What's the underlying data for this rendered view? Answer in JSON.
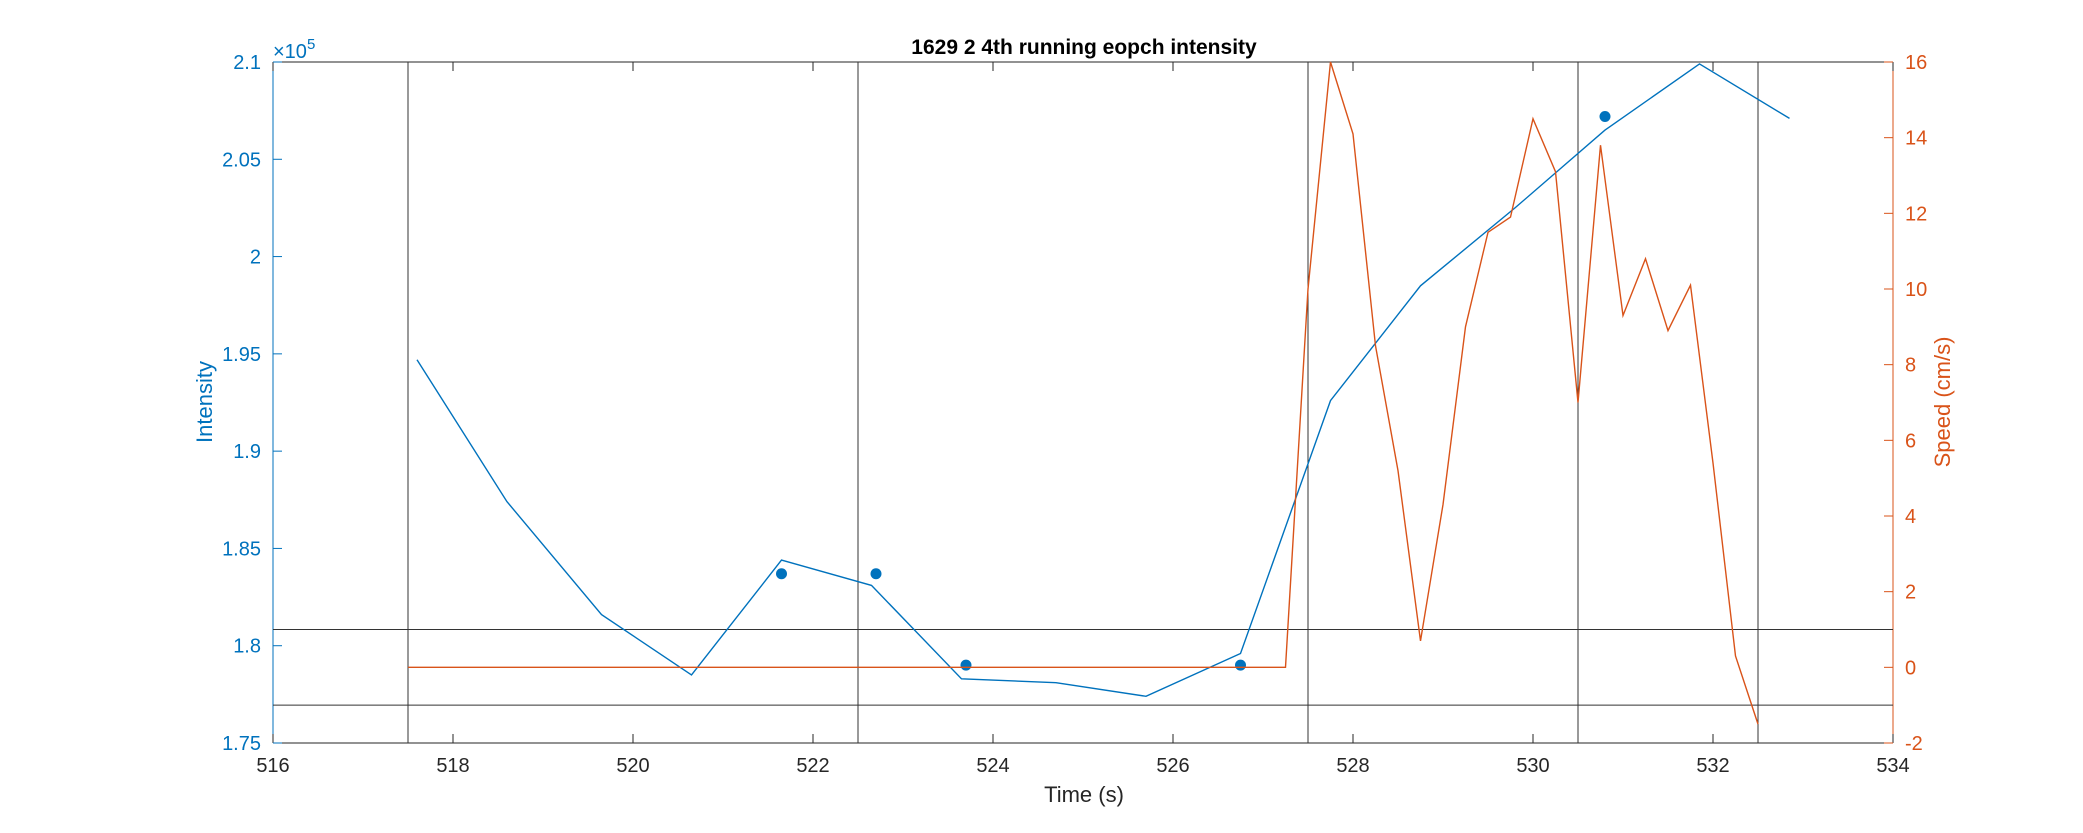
{
  "chart_data": {
    "type": "line",
    "title": "1629 2 4th running eopch intensity",
    "xlabel": "Time (s)",
    "ylabel_left": "Intensity",
    "ylabel_right": "Speed (cm/s)",
    "left_exponent_label": "×10",
    "left_exponent_power": "5",
    "xlim": [
      516,
      534
    ],
    "ylim_left": [
      175000,
      210000
    ],
    "ylim_right": [
      -2,
      16
    ],
    "x_ticks": [
      516,
      518,
      520,
      522,
      524,
      526,
      528,
      530,
      532,
      534
    ],
    "x_tick_labels": [
      "516",
      "518",
      "520",
      "522",
      "524",
      "526",
      "528",
      "530",
      "532",
      "534"
    ],
    "y_left_ticks": [
      175000,
      180000,
      185000,
      190000,
      195000,
      200000,
      205000,
      210000
    ],
    "y_left_tick_labels": [
      "1.75",
      "1.8",
      "1.85",
      "1.9",
      "1.95",
      "2",
      "2.05",
      "2.1"
    ],
    "y_right_ticks": [
      -2,
      0,
      2,
      4,
      6,
      8,
      10,
      12,
      14,
      16
    ],
    "y_right_tick_labels": [
      "-2",
      "0",
      "2",
      "4",
      "6",
      "8",
      "10",
      "12",
      "14",
      "16"
    ],
    "grid": false,
    "colors": {
      "intensity": "#0072BD",
      "speed": "#D95319",
      "reference": "#333333",
      "axes": "#262626"
    },
    "series": [
      {
        "axis": "left",
        "style": "line",
        "x": [
          517.6,
          518.6,
          519.65,
          520.65,
          521.65,
          522.65,
          523.65,
          524.7,
          525.7,
          526.75,
          527.75,
          528.75,
          529.8,
          530.8,
          531.85,
          532.85
        ],
        "y": [
          194700,
          187400,
          181600,
          178500,
          184400,
          183100,
          178300,
          178100,
          177400,
          179600,
          192600,
          198500,
          202500,
          206500,
          209900,
          207100
        ]
      },
      {
        "axis": "left",
        "style": "markers",
        "x": [
          521.65,
          522.7,
          523.7,
          526.75,
          530.8
        ],
        "y": [
          183700,
          183700,
          179000,
          179000,
          207200
        ]
      },
      {
        "axis": "right",
        "style": "line",
        "x": [
          517.5,
          527.25,
          527.5,
          527.75,
          528.0,
          528.25,
          528.5,
          528.75,
          529.0,
          529.25,
          529.5,
          529.75,
          530.0,
          530.25,
          530.5,
          530.75,
          531.0,
          531.25,
          531.5,
          531.75,
          532.0,
          532.25,
          532.5
        ],
        "y": [
          0,
          0,
          10,
          16,
          14.1,
          8.5,
          5.2,
          0.7,
          4.3,
          9,
          11.5,
          11.9,
          14.5,
          13.1,
          7,
          13.8,
          9.3,
          10.8,
          8.9,
          10.1,
          5.4,
          0.3,
          -1.5
        ]
      }
    ],
    "vertical_reference_lines": [
      517.5,
      522.5,
      527.5,
      530.5,
      532.5
    ],
    "horizontal_reference_lines_right": [
      1,
      -1
    ]
  }
}
